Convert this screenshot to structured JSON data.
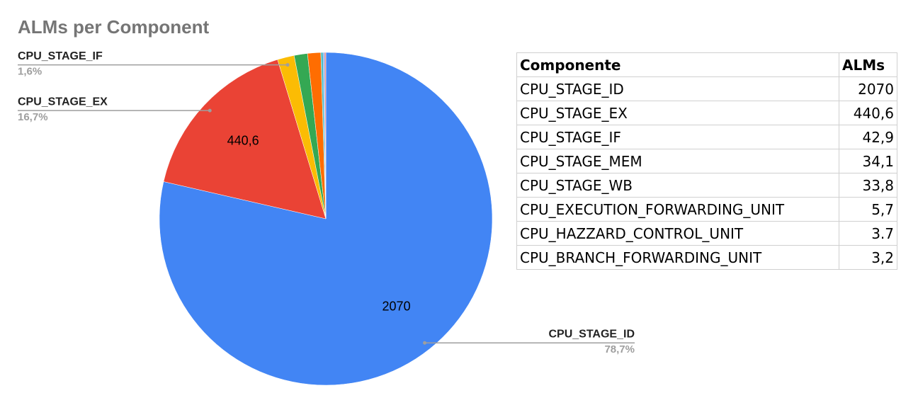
{
  "chart_data": {
    "type": "pie",
    "title": "ALMs per Component",
    "categories": [
      "CPU_STAGE_ID",
      "CPU_STAGE_EX",
      "CPU_STAGE_IF",
      "CPU_STAGE_MEM",
      "CPU_STAGE_WB",
      "CPU_EXECUTION_FORWARDING_UNIT",
      "CPU_HAZZARD_CONTROL_UNIT",
      "CPU_BRANCH_FORWARDING_UNIT"
    ],
    "values": [
      2070,
      440.6,
      42.9,
      34.1,
      33.8,
      5.7,
      3.7,
      3.2
    ],
    "value_labels": [
      "2070",
      "440,6",
      null,
      null,
      null,
      null,
      null,
      null
    ],
    "percent_labels": [
      "78,7%",
      "16,7%",
      "1,6%",
      null,
      null,
      null,
      null,
      null
    ],
    "colors": [
      "#4285f4",
      "#ea4335",
      "#fbbc04",
      "#34a853",
      "#ff6d01",
      "#46bdc6",
      "#7baaf7",
      "#f07b72"
    ]
  },
  "table": {
    "header": [
      "Componente",
      "ALMs"
    ],
    "rows": [
      [
        "CPU_STAGE_ID",
        "2070"
      ],
      [
        "CPU_STAGE_EX",
        "440,6"
      ],
      [
        "CPU_STAGE_IF",
        "42,9"
      ],
      [
        "CPU_STAGE_MEM",
        "34,1"
      ],
      [
        "CPU_STAGE_WB",
        "33,8"
      ],
      [
        "CPU_EXECUTION_FORWARDING_UNIT",
        "5,7"
      ],
      [
        "CPU_HAZZARD_CONTROL_UNIT",
        "3.7"
      ],
      [
        "CPU_BRANCH_FORWARDING_UNIT",
        "3,2"
      ]
    ]
  }
}
